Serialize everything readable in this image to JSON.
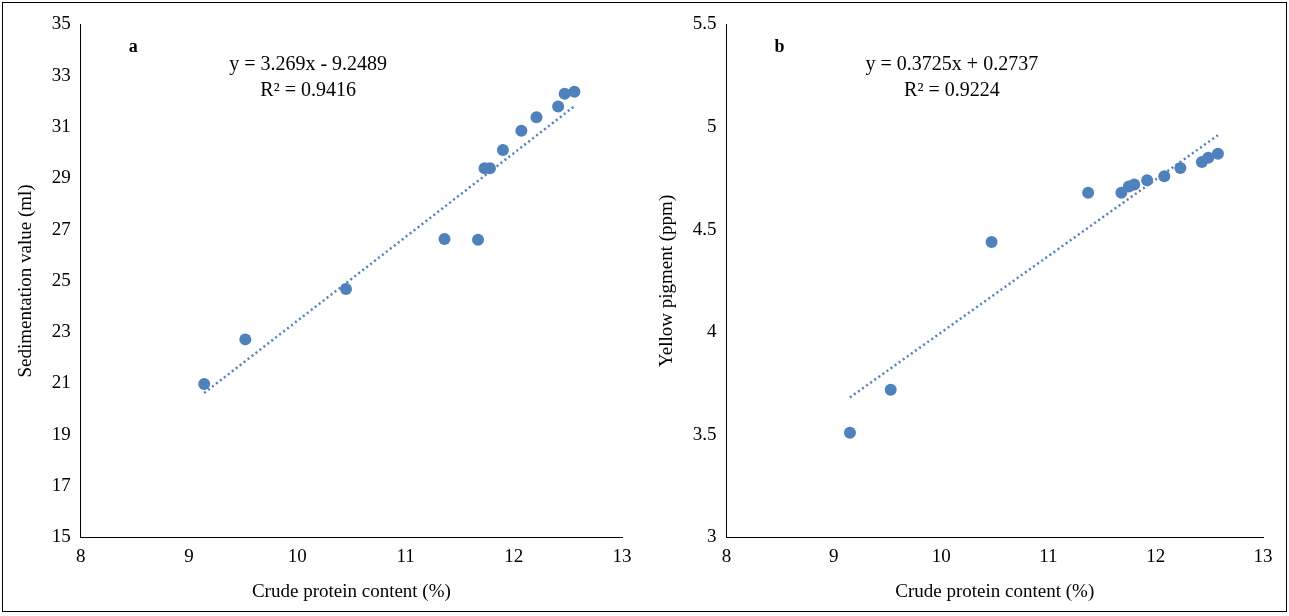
{
  "chart_data": [
    {
      "type": "scatter",
      "xlabel": "Crude protein content (%)",
      "ylabel": "Sedimentation value (ml)",
      "annotations": [
        "a",
        "y = 3.269x - 9.2489",
        "R² = 0.9416"
      ],
      "xlim": [
        8,
        13
      ],
      "xticks": [
        8,
        9,
        10,
        11,
        12,
        13
      ],
      "ylim": [
        15,
        35
      ],
      "yticks": [
        15,
        17,
        19,
        21,
        23,
        25,
        27,
        29,
        31,
        33,
        35
      ],
      "series": [
        {
          "color": "#4f81bd",
          "marker": "circle",
          "x": [
            9.14,
            9.52,
            10.45,
            11.36,
            11.67,
            11.73,
            11.78,
            11.9,
            12.07,
            12.21,
            12.41,
            12.47,
            12.56
          ],
          "values": [
            20.98,
            22.72,
            24.68,
            26.63,
            26.6,
            29.39,
            29.39,
            30.1,
            30.85,
            31.38,
            31.8,
            32.3,
            32.37
          ]
        },
        {
          "type": "line",
          "line_style": "dotted",
          "color": "#4f81bd",
          "x": [
            9.14,
            12.56
          ],
          "values": [
            20.63,
            31.81
          ]
        }
      ]
    },
    {
      "type": "scatter",
      "xlabel": "Crude protein content (%)",
      "ylabel": "Yellow pigment (ppm)",
      "annotations": [
        "b",
        "y = 0.3725x + 0.2737",
        "R² = 0.9224"
      ],
      "xlim": [
        8,
        13
      ],
      "xticks": [
        8,
        9,
        10,
        11,
        12,
        13
      ],
      "ylim": [
        3,
        5.5
      ],
      "yticks": [
        3,
        3.5,
        4,
        4.5,
        5,
        5.5
      ],
      "series": [
        {
          "color": "#4f81bd",
          "marker": "circle",
          "x": [
            9.15,
            9.53,
            10.47,
            11.37,
            11.68,
            11.75,
            11.8,
            11.92,
            12.08,
            12.23,
            12.43,
            12.49,
            12.58
          ],
          "values": [
            3.51,
            3.72,
            4.44,
            4.68,
            4.68,
            4.71,
            4.72,
            4.74,
            4.76,
            4.8,
            4.83,
            4.85,
            4.87
          ]
        },
        {
          "type": "line",
          "line_style": "dotted",
          "color": "#4f81bd",
          "x": [
            9.15,
            12.58
          ],
          "values": [
            3.682,
            4.96
          ]
        }
      ]
    }
  ]
}
